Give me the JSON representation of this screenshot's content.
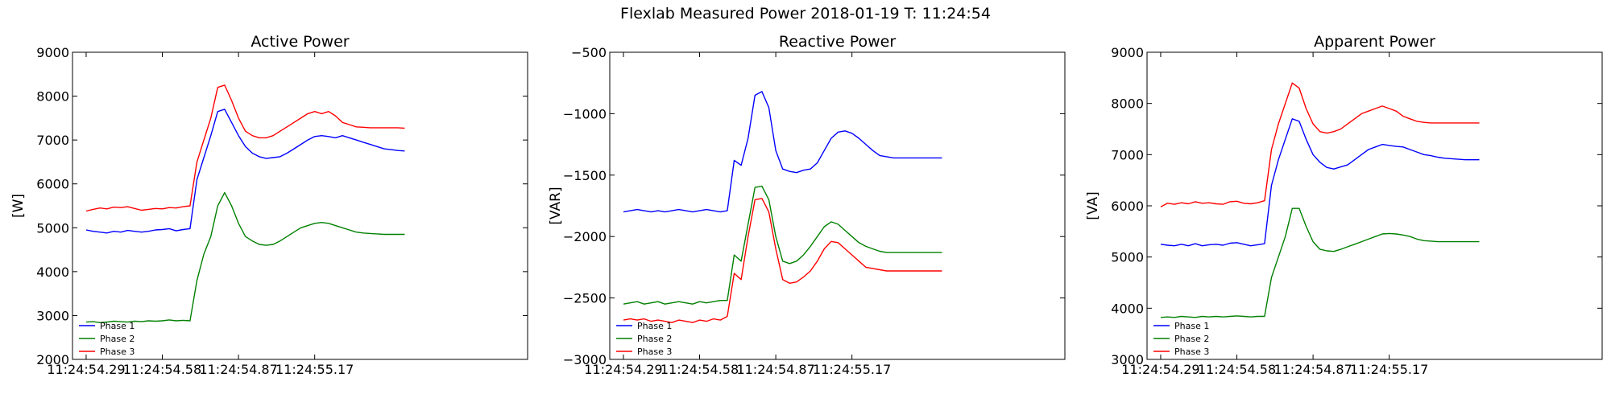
{
  "figure": {
    "title": "Flexlab Measured Power 2018-01-19 T: 11:24:54"
  },
  "colors": {
    "Phase 1": "#0000ff",
    "Phase 2": "#008000",
    "Phase 3": "#ff0000"
  },
  "chart_data": [
    {
      "type": "line",
      "title": "Active Power",
      "ylabel": "[W]",
      "xlabel": "",
      "ylim": [
        2000,
        9000
      ],
      "yticks": [
        2000,
        3000,
        4000,
        5000,
        6000,
        7000,
        8000,
        9000
      ],
      "xtick_labels": [
        "11:24:54.29",
        "11:24:54.58",
        "11:24:54.87",
        "11:24:55.17"
      ],
      "grid": false,
      "legend": "lower-left",
      "x": [
        0,
        1,
        2,
        3,
        4,
        5,
        6,
        7,
        8,
        9,
        10,
        11,
        12,
        13,
        14,
        15,
        16,
        17,
        18,
        19,
        20,
        21,
        22,
        23,
        24,
        25,
        26,
        27,
        28,
        29,
        30,
        31,
        32,
        33,
        34,
        35,
        36,
        37,
        38,
        39,
        40,
        41,
        42,
        43,
        44,
        45,
        46
      ],
      "series": [
        {
          "name": "Phase 1",
          "values": [
            4950,
            4920,
            4900,
            4880,
            4920,
            4900,
            4940,
            4920,
            4900,
            4920,
            4950,
            4960,
            4980,
            4930,
            4960,
            4980,
            6100,
            6600,
            7100,
            7650,
            7700,
            7400,
            7100,
            6850,
            6700,
            6620,
            6580,
            6600,
            6620,
            6700,
            6800,
            6900,
            7000,
            7080,
            7100,
            7080,
            7050,
            7100,
            7050,
            7000,
            6950,
            6900,
            6850,
            6800,
            6780,
            6760,
            6750
          ]
        },
        {
          "name": "Phase 2",
          "values": [
            2850,
            2860,
            2840,
            2850,
            2870,
            2860,
            2850,
            2870,
            2860,
            2880,
            2870,
            2880,
            2900,
            2880,
            2890,
            2880,
            3800,
            4400,
            4800,
            5500,
            5800,
            5500,
            5100,
            4800,
            4700,
            4620,
            4600,
            4620,
            4700,
            4800,
            4900,
            5000,
            5050,
            5100,
            5120,
            5100,
            5050,
            5000,
            4950,
            4900,
            4880,
            4870,
            4860,
            4850,
            4850,
            4850,
            4850
          ]
        },
        {
          "name": "Phase 3",
          "values": [
            5380,
            5420,
            5450,
            5430,
            5470,
            5460,
            5480,
            5440,
            5400,
            5420,
            5440,
            5430,
            5460,
            5450,
            5480,
            5500,
            6500,
            7000,
            7500,
            8200,
            8250,
            7900,
            7500,
            7200,
            7100,
            7050,
            7050,
            7100,
            7200,
            7300,
            7400,
            7500,
            7600,
            7650,
            7600,
            7650,
            7550,
            7400,
            7350,
            7300,
            7290,
            7280,
            7280,
            7280,
            7280,
            7280,
            7270
          ]
        }
      ]
    },
    {
      "type": "line",
      "title": "Reactive Power",
      "ylabel": "[VAR]",
      "xlabel": "",
      "ylim": [
        -3000,
        -500
      ],
      "yticks": [
        -3000,
        -2500,
        -2000,
        -1500,
        -1000,
        -500
      ],
      "xtick_labels": [
        "11:24:54.29",
        "11:24:54.58",
        "11:24:54.87",
        "11:24:55.17"
      ],
      "grid": false,
      "legend": "lower-left",
      "x": [
        0,
        1,
        2,
        3,
        4,
        5,
        6,
        7,
        8,
        9,
        10,
        11,
        12,
        13,
        14,
        15,
        16,
        17,
        18,
        19,
        20,
        21,
        22,
        23,
        24,
        25,
        26,
        27,
        28,
        29,
        30,
        31,
        32,
        33,
        34,
        35,
        36,
        37,
        38,
        39,
        40,
        41,
        42,
        43,
        44,
        45,
        46
      ],
      "series": [
        {
          "name": "Phase 1",
          "values": [
            -1800,
            -1790,
            -1780,
            -1790,
            -1800,
            -1790,
            -1800,
            -1790,
            -1780,
            -1790,
            -1800,
            -1790,
            -1780,
            -1790,
            -1800,
            -1790,
            -1380,
            -1420,
            -1200,
            -850,
            -820,
            -950,
            -1300,
            -1450,
            -1470,
            -1480,
            -1460,
            -1450,
            -1400,
            -1300,
            -1200,
            -1150,
            -1140,
            -1160,
            -1200,
            -1250,
            -1300,
            -1340,
            -1350,
            -1360,
            -1360,
            -1360,
            -1360,
            -1360,
            -1360,
            -1360,
            -1360
          ]
        },
        {
          "name": "Phase 2",
          "values": [
            -2550,
            -2540,
            -2530,
            -2550,
            -2540,
            -2530,
            -2550,
            -2540,
            -2530,
            -2540,
            -2550,
            -2530,
            -2540,
            -2530,
            -2520,
            -2520,
            -2150,
            -2200,
            -1900,
            -1600,
            -1590,
            -1700,
            -2000,
            -2200,
            -2220,
            -2200,
            -2150,
            -2080,
            -2000,
            -1920,
            -1880,
            -1900,
            -1950,
            -2000,
            -2050,
            -2080,
            -2100,
            -2120,
            -2130,
            -2130,
            -2130,
            -2130,
            -2130,
            -2130,
            -2130,
            -2130,
            -2130
          ]
        },
        {
          "name": "Phase 3",
          "values": [
            -2680,
            -2670,
            -2680,
            -2670,
            -2690,
            -2680,
            -2690,
            -2700,
            -2680,
            -2690,
            -2700,
            -2680,
            -2690,
            -2670,
            -2680,
            -2650,
            -2300,
            -2350,
            -2000,
            -1700,
            -1690,
            -1800,
            -2100,
            -2350,
            -2380,
            -2370,
            -2330,
            -2280,
            -2200,
            -2100,
            -2040,
            -2050,
            -2100,
            -2150,
            -2200,
            -2250,
            -2260,
            -2270,
            -2280,
            -2280,
            -2280,
            -2280,
            -2280,
            -2280,
            -2280,
            -2280,
            -2280
          ]
        }
      ]
    },
    {
      "type": "line",
      "title": "Apparent Power",
      "ylabel": "[VA]",
      "xlabel": "",
      "ylim": [
        3000,
        9000
      ],
      "yticks": [
        3000,
        4000,
        5000,
        6000,
        7000,
        8000,
        9000
      ],
      "xtick_labels": [
        "11:24:54.29",
        "11:24:54.58",
        "11:24:54.87",
        "11:24:55.17"
      ],
      "grid": false,
      "legend": "lower-left",
      "x": [
        0,
        1,
        2,
        3,
        4,
        5,
        6,
        7,
        8,
        9,
        10,
        11,
        12,
        13,
        14,
        15,
        16,
        17,
        18,
        19,
        20,
        21,
        22,
        23,
        24,
        25,
        26,
        27,
        28,
        29,
        30,
        31,
        32,
        33,
        34,
        35,
        36,
        37,
        38,
        39,
        40,
        41,
        42,
        43,
        44,
        45,
        46
      ],
      "series": [
        {
          "name": "Phase 1",
          "values": [
            5250,
            5230,
            5220,
            5250,
            5220,
            5260,
            5220,
            5240,
            5250,
            5230,
            5270,
            5280,
            5250,
            5220,
            5240,
            5260,
            6400,
            6900,
            7300,
            7700,
            7650,
            7300,
            7000,
            6850,
            6750,
            6720,
            6760,
            6800,
            6900,
            7000,
            7100,
            7150,
            7200,
            7180,
            7160,
            7150,
            7100,
            7050,
            7000,
            6980,
            6950,
            6930,
            6920,
            6910,
            6900,
            6900,
            6900
          ]
        },
        {
          "name": "Phase 2",
          "values": [
            3820,
            3830,
            3820,
            3840,
            3830,
            3820,
            3840,
            3830,
            3840,
            3830,
            3840,
            3850,
            3840,
            3830,
            3840,
            3840,
            4600,
            5000,
            5400,
            5950,
            5950,
            5600,
            5300,
            5150,
            5120,
            5110,
            5150,
            5200,
            5250,
            5300,
            5350,
            5400,
            5450,
            5460,
            5450,
            5430,
            5400,
            5350,
            5320,
            5310,
            5300,
            5300,
            5300,
            5300,
            5300,
            5300,
            5300
          ]
        },
        {
          "name": "Phase 3",
          "values": [
            5980,
            6050,
            6030,
            6060,
            6040,
            6080,
            6050,
            6060,
            6040,
            6030,
            6080,
            6090,
            6050,
            6040,
            6060,
            6100,
            7100,
            7600,
            8000,
            8400,
            8300,
            7900,
            7600,
            7450,
            7420,
            7450,
            7500,
            7600,
            7700,
            7800,
            7850,
            7900,
            7950,
            7900,
            7850,
            7750,
            7700,
            7650,
            7630,
            7620,
            7620,
            7620,
            7620,
            7620,
            7620,
            7620,
            7620
          ]
        }
      ]
    }
  ]
}
